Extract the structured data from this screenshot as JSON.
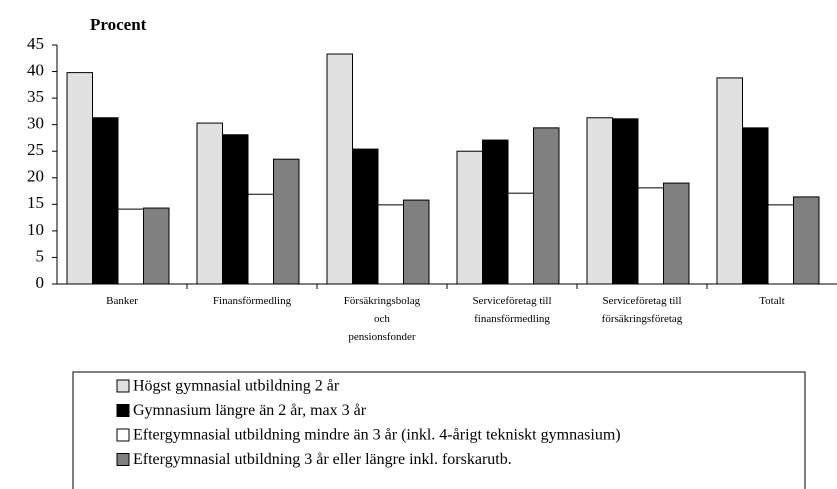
{
  "chart_data": {
    "type": "bar",
    "title": "Procent",
    "categories": [
      "Banker",
      "Finansförmedling",
      "Försäkringsbolag\noch\npensionsfonder",
      "Serviceföretag till\nfinansförmedling",
      "Serviceföretag till\nförsäkringsföretag",
      "Totalt"
    ],
    "series": [
      {
        "name": "Högst gymnasial utbildning 2 år",
        "color": "#e0e0e0",
        "values": [
          39.8,
          30.3,
          43.3,
          25.0,
          31.3,
          38.8
        ]
      },
      {
        "name": "Gymnasium längre än 2 år, max 3 år",
        "color": "#000000",
        "values": [
          31.3,
          28.1,
          25.4,
          27.1,
          31.1,
          29.4
        ]
      },
      {
        "name": "Eftergymnasial utbildning mindre än 3 år (inkl. 4-årigt tekniskt gymnasium)",
        "color": "#ffffff",
        "values": [
          14.1,
          16.9,
          14.9,
          17.1,
          18.1,
          14.9
        ]
      },
      {
        "name": "Eftergymnasial utbildning 3 år eller längre inkl. forskarutb.",
        "color": "#808080",
        "values": [
          14.3,
          23.5,
          15.8,
          29.4,
          19.0,
          16.4
        ]
      }
    ],
    "ylim": [
      0,
      45
    ],
    "yticks": [
      0,
      5,
      10,
      15,
      20,
      25,
      30,
      35,
      40,
      45
    ]
  }
}
